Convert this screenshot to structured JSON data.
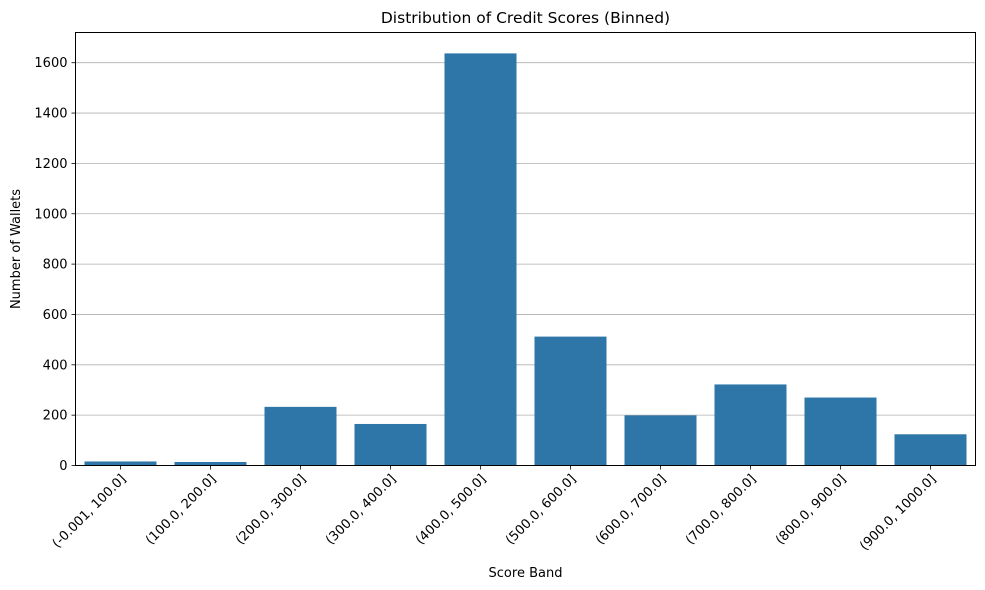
{
  "chart_data": {
    "type": "bar",
    "title": "Distribution of Credit Scores (Binned)",
    "xlabel": "Score Band",
    "ylabel": "Number of Wallets",
    "categories": [
      "(-0.001, 100.0]",
      "(100.0, 200.0]",
      "(200.0, 300.0]",
      "(300.0, 400.0]",
      "(400.0, 500.0]",
      "(500.0, 600.0]",
      "(600.0, 700.0]",
      "(700.0, 800.0]",
      "(800.0, 900.0]",
      "(900.0, 1000.0]"
    ],
    "values": [
      16,
      14,
      233,
      165,
      1637,
      512,
      199,
      322,
      270,
      124
    ],
    "ylim": [
      0,
      1720
    ],
    "yticks": [
      0,
      200,
      400,
      600,
      800,
      1000,
      1200,
      1400,
      1600
    ],
    "grid": "y",
    "bar_color": "#2e75a8"
  }
}
